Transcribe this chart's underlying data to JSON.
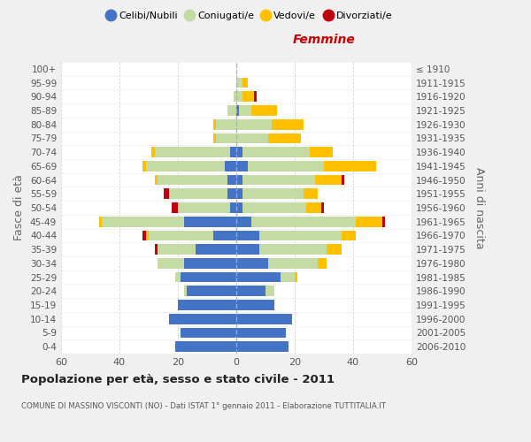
{
  "age_groups": [
    "0-4",
    "5-9",
    "10-14",
    "15-19",
    "20-24",
    "25-29",
    "30-34",
    "35-39",
    "40-44",
    "45-49",
    "50-54",
    "55-59",
    "60-64",
    "65-69",
    "70-74",
    "75-79",
    "80-84",
    "85-89",
    "90-94",
    "95-99",
    "100+"
  ],
  "birth_years": [
    "2006-2010",
    "2001-2005",
    "1996-2000",
    "1991-1995",
    "1986-1990",
    "1981-1985",
    "1976-1980",
    "1971-1975",
    "1966-1970",
    "1961-1965",
    "1956-1960",
    "1951-1955",
    "1946-1950",
    "1941-1945",
    "1936-1940",
    "1931-1935",
    "1926-1930",
    "1921-1925",
    "1916-1920",
    "1911-1915",
    "≤ 1910"
  ],
  "male": {
    "celibi": [
      21,
      19,
      23,
      20,
      17,
      19,
      18,
      14,
      8,
      18,
      2,
      3,
      3,
      4,
      2,
      0,
      0,
      0,
      0,
      0,
      0
    ],
    "coniugati": [
      0,
      0,
      0,
      0,
      1,
      2,
      9,
      13,
      22,
      28,
      18,
      20,
      24,
      27,
      26,
      7,
      7,
      3,
      1,
      0,
      0
    ],
    "vedovi": [
      0,
      0,
      0,
      0,
      0,
      0,
      0,
      0,
      1,
      1,
      0,
      0,
      1,
      1,
      1,
      1,
      1,
      0,
      0,
      0,
      0
    ],
    "divorziati": [
      0,
      0,
      0,
      0,
      0,
      0,
      0,
      1,
      1,
      0,
      2,
      2,
      0,
      0,
      0,
      0,
      0,
      0,
      0,
      0,
      0
    ]
  },
  "female": {
    "nubili": [
      18,
      17,
      19,
      13,
      10,
      15,
      11,
      8,
      8,
      5,
      2,
      2,
      2,
      4,
      2,
      0,
      0,
      1,
      0,
      0,
      0
    ],
    "coniugate": [
      0,
      0,
      0,
      0,
      3,
      5,
      17,
      23,
      28,
      36,
      22,
      21,
      25,
      26,
      23,
      11,
      12,
      4,
      2,
      2,
      0
    ],
    "vedove": [
      0,
      0,
      0,
      0,
      0,
      1,
      3,
      5,
      5,
      9,
      5,
      5,
      9,
      18,
      8,
      11,
      11,
      9,
      4,
      2,
      0
    ],
    "divorziate": [
      0,
      0,
      0,
      0,
      0,
      0,
      0,
      0,
      0,
      1,
      1,
      0,
      1,
      0,
      0,
      0,
      0,
      0,
      1,
      0,
      0
    ]
  },
  "colors": {
    "celibi": "#4472c4",
    "coniugati": "#c5dba4",
    "vedovi": "#ffc000",
    "divorziati": "#c0000c"
  },
  "xlim": 60,
  "title": "Popolazione per età, sesso e stato civile - 2011",
  "subtitle": "COMUNE DI MASSINO VISCONTI (NO) - Dati ISTAT 1° gennaio 2011 - Elaborazione TUTTITALIA.IT",
  "ylabel_left": "Fasce di età",
  "ylabel_right": "Anni di nascita",
  "xlabel_right": "Femmine",
  "bg_color": "#f0f0f0",
  "plot_bg_color": "#ffffff",
  "grid_color": "#cccccc",
  "legend_labels": [
    "Celibi/Nubili",
    "Coniugati/e",
    "Vedovi/e",
    "Divorziati/e"
  ]
}
